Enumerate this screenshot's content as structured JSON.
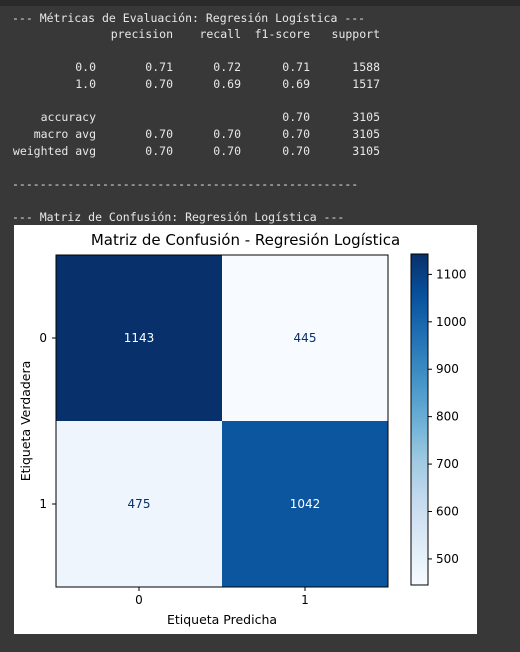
{
  "console": {
    "header": "--- Métricas de Evaluación: Regresión Logística ---",
    "col_precision": "precision",
    "col_recall": "recall",
    "col_f1": "f1-score",
    "col_support": "support",
    "rows": [
      {
        "label": "0.0",
        "precision": "0.71",
        "recall": "0.72",
        "f1": "0.71",
        "support": "1588"
      },
      {
        "label": "1.0",
        "precision": "0.70",
        "recall": "0.69",
        "f1": "0.69",
        "support": "1517"
      },
      {
        "label": "accuracy",
        "precision": "",
        "recall": "",
        "f1": "0.70",
        "support": "3105"
      },
      {
        "label": "macro avg",
        "precision": "0.70",
        "recall": "0.70",
        "f1": "0.70",
        "support": "3105"
      },
      {
        "label": "weighted avg",
        "precision": "0.70",
        "recall": "0.70",
        "f1": "0.70",
        "support": "3105"
      }
    ],
    "separator": "--------------------------------------------------",
    "matrix_header": "--- Matriz de Confusión: Regresión Logística ---"
  },
  "chart_data": {
    "type": "heatmap",
    "title": "Matriz de Confusión - Regresión Logística",
    "xlabel": "Etiqueta Predicha",
    "ylabel": "Etiqueta Verdadera",
    "x_categories": [
      "0",
      "1"
    ],
    "y_categories": [
      "0",
      "1"
    ],
    "values": [
      [
        1143,
        445
      ],
      [
        475,
        1042
      ]
    ],
    "colormap": "Blues",
    "color_range": [
      445,
      1143
    ],
    "colorbar_ticks": [
      "500",
      "600",
      "700",
      "800",
      "900",
      "1000",
      "1100"
    ]
  }
}
